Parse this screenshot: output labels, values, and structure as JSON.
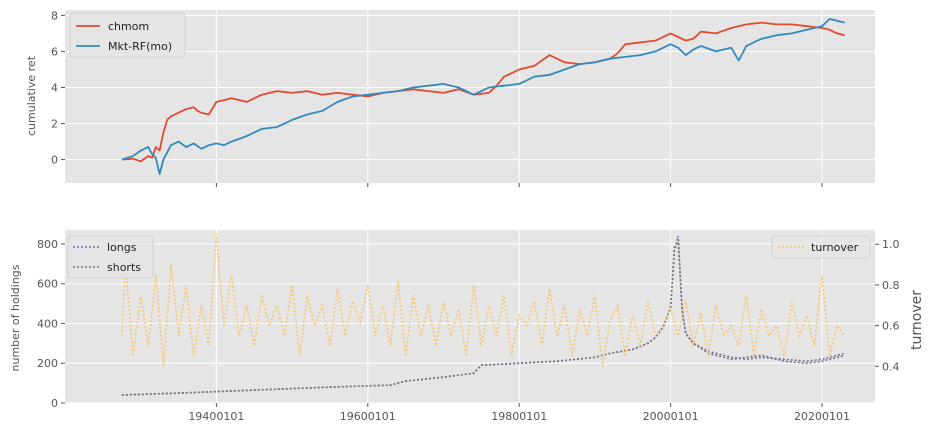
{
  "chart_data": [
    {
      "type": "line",
      "ylabel": "cumulative ret",
      "ylim": [
        -1.3,
        8.3
      ],
      "xlim": [
        1920,
        2027
      ],
      "yticks": [
        "0",
        "2",
        "4",
        "6",
        "8"
      ],
      "grid": true,
      "legend_position": "top-left",
      "series": [
        {
          "name": "chmom",
          "color": "#E24A33",
          "x": [
            1927.5,
            1929,
            1930,
            1931,
            1931.5,
            1932,
            1932.5,
            1933,
            1933.5,
            1934,
            1935,
            1936,
            1937,
            1937.5,
            1938,
            1939,
            1940,
            1941,
            1942,
            1944,
            1946,
            1948,
            1950,
            1952,
            1954,
            1956,
            1958,
            1960,
            1962,
            1964,
            1966,
            1968,
            1970,
            1972,
            1974,
            1976,
            1977,
            1978,
            1980,
            1982,
            1984,
            1986,
            1988,
            1990,
            1992,
            1993,
            1994,
            1996,
            1998,
            2000,
            2001,
            2002,
            2003,
            2004,
            2006,
            2008,
            2010,
            2012,
            2014,
            2016,
            2018,
            2020,
            2021,
            2022,
            2023
          ],
          "y": [
            0.0,
            0.05,
            -0.1,
            0.2,
            0.1,
            0.7,
            0.5,
            1.5,
            2.2,
            2.4,
            2.6,
            2.8,
            2.9,
            2.7,
            2.6,
            2.5,
            3.2,
            3.3,
            3.4,
            3.2,
            3.6,
            3.8,
            3.7,
            3.8,
            3.6,
            3.7,
            3.6,
            3.5,
            3.7,
            3.8,
            3.9,
            3.8,
            3.7,
            3.9,
            3.6,
            3.7,
            4.1,
            4.6,
            5.0,
            5.2,
            5.8,
            5.4,
            5.3,
            5.4,
            5.6,
            5.9,
            6.4,
            6.5,
            6.6,
            7.0,
            6.8,
            6.6,
            6.7,
            7.1,
            7.0,
            7.3,
            7.5,
            7.6,
            7.5,
            7.5,
            7.4,
            7.3,
            7.2,
            7.0,
            6.9
          ]
        },
        {
          "name": "Mkt-RF(mo)",
          "color": "#348ABD",
          "x": [
            1927.5,
            1929,
            1930,
            1931,
            1931.5,
            1932,
            1932.5,
            1933,
            1933.5,
            1934,
            1935,
            1936,
            1937,
            1938,
            1939,
            1940,
            1941,
            1942,
            1944,
            1946,
            1948,
            1950,
            1952,
            1954,
            1956,
            1958,
            1960,
            1962,
            1964,
            1966,
            1968,
            1970,
            1972,
            1974,
            1975,
            1976,
            1978,
            1980,
            1982,
            1984,
            1986,
            1988,
            1990,
            1992,
            1994,
            1996,
            1998,
            2000,
            2001,
            2002,
            2003,
            2004,
            2006,
            2008,
            2009,
            2010,
            2012,
            2014,
            2016,
            2018,
            2020,
            2021,
            2022,
            2023
          ],
          "y": [
            0.0,
            0.2,
            0.5,
            0.7,
            0.3,
            0.1,
            -0.8,
            0.0,
            0.4,
            0.8,
            1.0,
            0.7,
            0.9,
            0.6,
            0.8,
            0.9,
            0.8,
            1.0,
            1.3,
            1.7,
            1.8,
            2.2,
            2.5,
            2.7,
            3.2,
            3.5,
            3.6,
            3.7,
            3.8,
            4.0,
            4.1,
            4.2,
            4.0,
            3.6,
            3.8,
            4.0,
            4.1,
            4.2,
            4.6,
            4.7,
            5.0,
            5.3,
            5.4,
            5.6,
            5.7,
            5.8,
            6.0,
            6.4,
            6.2,
            5.8,
            6.1,
            6.3,
            6.0,
            6.2,
            5.5,
            6.3,
            6.7,
            6.9,
            7.0,
            7.2,
            7.4,
            7.8,
            7.7,
            7.6
          ]
        }
      ]
    },
    {
      "type": "line",
      "ylabel": "number of holdings",
      "y2label": "turnover",
      "ylim": [
        0,
        870
      ],
      "y2lim": [
        0.22,
        1.07
      ],
      "xlim": [
        1920,
        2027
      ],
      "yticks": [
        "0",
        "200",
        "400",
        "600",
        "800"
      ],
      "y2ticks": [
        "0.4",
        "0.6",
        "0.8",
        "1.0"
      ],
      "xticks": [
        "19400101",
        "19600101",
        "19800101",
        "20000101",
        "20200101"
      ],
      "xtick_values": [
        1940,
        1960,
        1980,
        2000,
        2020
      ],
      "grid": true,
      "series": [
        {
          "name": "longs",
          "color": "#7A68A6",
          "axis": "left",
          "x": [
            1927.5,
            1935,
            1945,
            1955,
            1963,
            1965,
            1970,
            1974,
            1975,
            1980,
            1985,
            1990,
            1992,
            1995,
            1997,
            1998,
            1999,
            2000,
            2000.5,
            2001,
            2001.5,
            2002,
            2003,
            2005,
            2008,
            2010,
            2012,
            2015,
            2018,
            2020,
            2022,
            2023
          ],
          "y": [
            40,
            50,
            65,
            80,
            90,
            110,
            130,
            150,
            190,
            200,
            210,
            230,
            250,
            270,
            300,
            330,
            380,
            480,
            760,
            840,
            470,
            350,
            300,
            250,
            220,
            230,
            240,
            210,
            200,
            210,
            230,
            240
          ]
        },
        {
          "name": "shorts",
          "color": "#777777",
          "axis": "left",
          "x": [
            1927.5,
            1935,
            1945,
            1955,
            1963,
            1965,
            1970,
            1974,
            1975,
            1980,
            1985,
            1990,
            1992,
            1995,
            1997,
            1998,
            1999,
            2000,
            2000.5,
            2001,
            2001.5,
            2002,
            2003,
            2005,
            2008,
            2010,
            2012,
            2015,
            2018,
            2020,
            2022,
            2023
          ],
          "y": [
            40,
            50,
            65,
            80,
            90,
            110,
            130,
            150,
            190,
            200,
            210,
            230,
            250,
            270,
            300,
            330,
            380,
            480,
            780,
            820,
            480,
            350,
            300,
            260,
            230,
            220,
            230,
            220,
            210,
            220,
            240,
            250
          ]
        },
        {
          "name": "turnover",
          "color": "#FBC15E",
          "axis": "right",
          "x": [
            1927.5,
            1928,
            1929,
            1930,
            1931,
            1932,
            1933,
            1934,
            1935,
            1936,
            1937,
            1938,
            1939,
            1940,
            1941,
            1942,
            1943,
            1944,
            1945,
            1946,
            1947,
            1948,
            1949,
            1950,
            1951,
            1952,
            1953,
            1954,
            1955,
            1956,
            1957,
            1958,
            1959,
            1960,
            1961,
            1962,
            1963,
            1964,
            1965,
            1966,
            1967,
            1968,
            1969,
            1970,
            1971,
            1972,
            1973,
            1974,
            1975,
            1976,
            1977,
            1978,
            1979,
            1980,
            1981,
            1982,
            1983,
            1984,
            1985,
            1986,
            1987,
            1988,
            1989,
            1990,
            1991,
            1992,
            1993,
            1994,
            1995,
            1996,
            1997,
            1998,
            1999,
            2000,
            2001,
            2002,
            2003,
            2004,
            2005,
            2006,
            2007,
            2008,
            2009,
            2010,
            2011,
            2012,
            2013,
            2014,
            2015,
            2016,
            2017,
            2018,
            2019,
            2020,
            2021,
            2022,
            2023
          ],
          "y": [
            0.55,
            0.9,
            0.45,
            0.75,
            0.5,
            0.85,
            0.4,
            0.9,
            0.55,
            0.8,
            0.45,
            0.7,
            0.5,
            1.05,
            0.6,
            0.85,
            0.55,
            0.7,
            0.5,
            0.75,
            0.6,
            0.7,
            0.55,
            0.8,
            0.45,
            0.75,
            0.6,
            0.7,
            0.5,
            0.78,
            0.55,
            0.72,
            0.62,
            0.8,
            0.55,
            0.7,
            0.5,
            0.82,
            0.45,
            0.75,
            0.55,
            0.7,
            0.5,
            0.72,
            0.55,
            0.68,
            0.45,
            0.8,
            0.5,
            0.7,
            0.55,
            0.75,
            0.45,
            0.65,
            0.6,
            0.72,
            0.5,
            0.78,
            0.55,
            0.7,
            0.45,
            0.68,
            0.55,
            0.75,
            0.4,
            0.62,
            0.7,
            0.45,
            0.65,
            0.5,
            0.72,
            0.55,
            0.6,
            0.68,
            0.55,
            0.72,
            0.5,
            0.66,
            0.45,
            0.7,
            0.55,
            0.6,
            0.5,
            0.75,
            0.45,
            0.68,
            0.55,
            0.6,
            0.45,
            0.72,
            0.55,
            0.65,
            0.5,
            0.85,
            0.45,
            0.6,
            0.55
          ]
        }
      ]
    }
  ]
}
